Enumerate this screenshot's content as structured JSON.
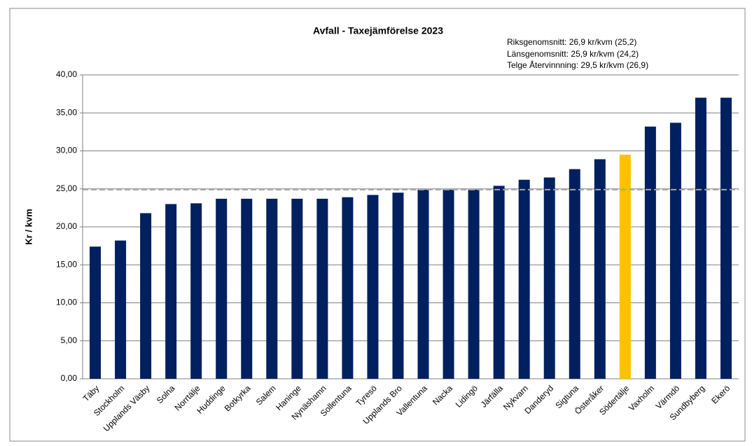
{
  "chart_data": {
    "type": "bar",
    "title": "Avfall - Taxejämförelse 2023",
    "annotations": [
      "Riksgenomsnitt:  26,9 kr/kvm  (25,2)",
      "Länsgenomsnitt:  25,9 kr/kvm  (24,2)",
      "Telge Återvinnning:  29,5 kr/kvm  (26,9)"
    ],
    "y_label": "Kr / kvm",
    "categories": [
      "Täby",
      "Stockholm",
      "Upplands Väsby",
      "Solna",
      "Norrtälje",
      "Huddinge",
      "Botkyrka",
      "Salem",
      "Haninge",
      "Nynäshamn",
      "Sollentuna",
      "Tyresö",
      "Upplands Bro",
      "Vallentuna",
      "Nacka",
      "Lidingö",
      "Järfälla",
      "Nykvarn",
      "Danderyd",
      "Sigtuna",
      "Österåker",
      "Södertälje",
      "Vaxholm",
      "Värmdö",
      "Sundbyberg",
      "Ekerö"
    ],
    "values": [
      17.4,
      18.2,
      21.8,
      23.0,
      23.1,
      23.7,
      23.7,
      23.7,
      23.7,
      23.7,
      23.9,
      24.2,
      24.5,
      24.9,
      24.9,
      24.9,
      25.4,
      26.2,
      26.5,
      27.6,
      28.9,
      29.5,
      33.2,
      33.7,
      37.0,
      37.0
    ],
    "colors": [
      "#002060",
      "#002060",
      "#002060",
      "#002060",
      "#002060",
      "#002060",
      "#002060",
      "#002060",
      "#002060",
      "#002060",
      "#002060",
      "#002060",
      "#002060",
      "#002060",
      "#002060",
      "#002060",
      "#002060",
      "#002060",
      "#002060",
      "#002060",
      "#002060",
      "#ffc000",
      "#002060",
      "#002060",
      "#002060",
      "#002060"
    ],
    "reference_line": {
      "value": 24.9,
      "color": "#a6a6a6"
    },
    "ylim": [
      0,
      40
    ],
    "yticks": [
      {
        "value": 0,
        "label": "0,00"
      },
      {
        "value": 5,
        "label": "5,00"
      },
      {
        "value": 10,
        "label": "10,00"
      },
      {
        "value": 15,
        "label": "15,00"
      },
      {
        "value": 20,
        "label": "20,00"
      },
      {
        "value": 25,
        "label": "25,00"
      },
      {
        "value": 30,
        "label": "30,00"
      },
      {
        "value": 35,
        "label": "35,00"
      },
      {
        "value": 40,
        "label": "40,00"
      }
    ],
    "grid": true
  }
}
